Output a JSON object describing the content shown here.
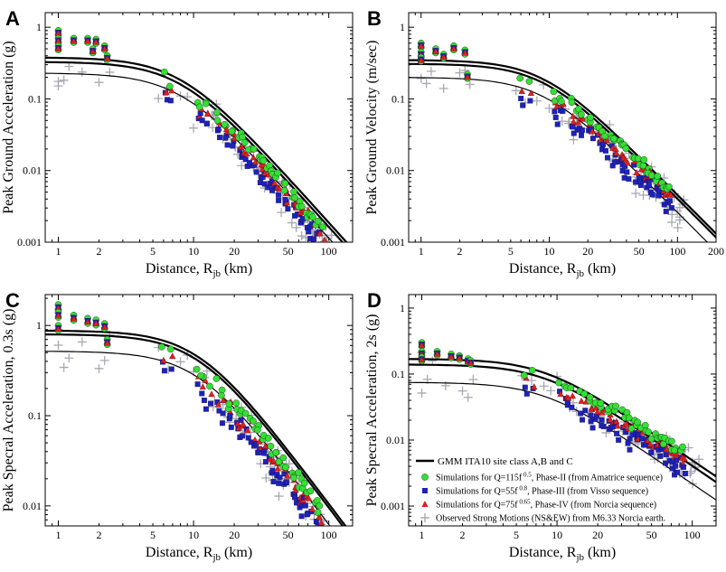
{
  "chart_data": [
    {
      "type": "scatter",
      "panel": "A",
      "xlabel": "Distance, R",
      "xlabel_sub": "jb",
      "xlabel_unit": "(km)",
      "ylabel": "Peak Ground Acceleration (g)",
      "xlim": [
        0.8,
        150
      ],
      "ylim": [
        0.001,
        1.6
      ],
      "xticks": [
        1,
        2,
        5,
        10,
        20,
        50,
        100
      ],
      "yticks": [
        0.001,
        0.01,
        0.1,
        1
      ],
      "ytick_labels": [
        "0.001",
        "0.01",
        "0.1",
        "1"
      ],
      "gmm": [
        {
          "name": "upper",
          "width": 2.2,
          "m0": 0.38,
          "m1": 2.1
        },
        {
          "name": "middle",
          "width": 2.2,
          "m0": 0.33,
          "m1": 2.1
        },
        {
          "name": "lower",
          "width": 1.2,
          "m0": 0.23,
          "m1": 2.1
        }
      ],
      "gmm_rc": 8,
      "sim_ref": 0.3,
      "sim_m": 2.1,
      "near_values": [
        [
          1,
          0.9
        ],
        [
          1,
          0.7
        ],
        [
          1,
          0.55
        ],
        [
          1.3,
          0.7
        ],
        [
          1.65,
          0.7
        ],
        [
          1.9,
          0.68
        ],
        [
          2.2,
          0.55
        ],
        [
          1.8,
          0.5
        ],
        [
          2.3,
          0.4
        ]
      ]
    },
    {
      "type": "scatter",
      "panel": "B",
      "xlabel": "Distance, R",
      "xlabel_sub": "jb",
      "xlabel_unit": "(km)",
      "ylabel": "Peak Ground Velocity (m/sec)",
      "xlim": [
        0.8,
        200
      ],
      "ylim": [
        0.001,
        1.6
      ],
      "xticks": [
        1,
        2,
        5,
        10,
        20,
        50,
        100,
        200
      ],
      "yticks": [
        0.001,
        0.01,
        0.1,
        1
      ],
      "ytick_labels": [
        "0.001",
        "0.01",
        "0.1",
        "1"
      ],
      "gmm": [
        {
          "name": "upper",
          "width": 2.2,
          "m0": 0.35,
          "m1": 1.8
        },
        {
          "name": "middle",
          "width": 2.2,
          "m0": 0.31,
          "m1": 1.8
        },
        {
          "name": "lower",
          "width": 1.2,
          "m0": 0.2,
          "m1": 1.8
        }
      ],
      "gmm_rc": 9,
      "sim_ref": 0.25,
      "sim_m": 1.6,
      "near_values": [
        [
          1,
          0.6
        ],
        [
          1,
          0.45
        ],
        [
          1,
          0.38
        ],
        [
          1.3,
          0.5
        ],
        [
          1.5,
          0.42
        ],
        [
          1.8,
          0.55
        ],
        [
          2.2,
          0.48
        ],
        [
          2.3,
          0.22
        ]
      ]
    },
    {
      "type": "scatter",
      "panel": "C",
      "xlabel": "Distance, R",
      "xlabel_sub": "jb",
      "xlabel_unit": "(km)",
      "ylabel": "Peak Specral Acceleration, 0.3s (g)",
      "xlim": [
        0.8,
        150
      ],
      "ylim": [
        0.006,
        2.2
      ],
      "xticks": [
        1,
        2,
        5,
        10,
        20,
        50,
        100
      ],
      "yticks": [
        0.01,
        0.1,
        1
      ],
      "ytick_labels": [
        "0.01",
        "0.1",
        "1"
      ],
      "gmm": [
        {
          "name": "upper",
          "width": 2.2,
          "m0": 0.88,
          "m1": 2.0
        },
        {
          "name": "middle",
          "width": 2.2,
          "m0": 0.8,
          "m1": 2.0
        },
        {
          "name": "lower",
          "width": 1.2,
          "m0": 0.52,
          "m1": 2.0
        }
      ],
      "gmm_rc": 11,
      "sim_ref": 0.7,
      "sim_m": 2.0,
      "near_values": [
        [
          1,
          1.7
        ],
        [
          1,
          1.4
        ],
        [
          1,
          1.0
        ],
        [
          1.3,
          1.3
        ],
        [
          1.65,
          1.2
        ],
        [
          1.9,
          1.15
        ],
        [
          2.2,
          1.05
        ],
        [
          2.3,
          0.7
        ]
      ]
    },
    {
      "type": "scatter",
      "panel": "D",
      "xlabel": "Distance, R",
      "xlabel_sub": "jb",
      "xlabel_unit": "(km)",
      "ylabel": "Peak Specral Acceleration, 2s (g)",
      "xlim": [
        0.8,
        150
      ],
      "ylim": [
        0.0005,
        1.6
      ],
      "xticks": [
        1,
        2,
        5,
        10,
        20,
        50,
        100
      ],
      "yticks": [
        0.001,
        0.01,
        0.1,
        1
      ],
      "ytick_labels": [
        "0.001",
        "0.01",
        "0.1",
        "1"
      ],
      "gmm": [
        {
          "name": "upper",
          "width": 2.2,
          "m0": 0.17,
          "m1": 1.4
        },
        {
          "name": "middle",
          "width": 2.2,
          "m0": 0.14,
          "m1": 1.4
        },
        {
          "name": "lower",
          "width": 1.2,
          "m0": 0.075,
          "m1": 1.4
        }
      ],
      "gmm_rc": 8,
      "sim_ref": 0.13,
      "sim_m": 1.2,
      "near_values": [
        [
          1,
          0.3
        ],
        [
          1,
          0.22
        ],
        [
          1,
          0.18
        ],
        [
          1.3,
          0.22
        ],
        [
          1.65,
          0.2
        ],
        [
          1.9,
          0.19
        ],
        [
          2.2,
          0.17
        ],
        [
          2.3,
          0.16
        ]
      ],
      "legend": {
        "title": "GMM  ITA10 site class A,B and C",
        "items": [
          {
            "marker": "circle",
            "color": "#33e033",
            "text_pre": "Simulations for Q=115f",
            "sup": "0.5",
            "text_post": ", Phase-II (from Amatrice sequence)"
          },
          {
            "marker": "square",
            "color": "#1f22b8",
            "text_pre": "Simulations for Q=55f",
            "sup": "0.8",
            "text_post": ", Phase-III (from Visso sequence)"
          },
          {
            "marker": "triangle",
            "color": "#e02020",
            "text_pre": "Simulations for Q=75f",
            "sup": "0.65",
            "text_post": ", Phase-IV (from Norcia sequence)"
          },
          {
            "marker": "plus",
            "color": "#a8a8b4",
            "text_pre": "Observed Strong Motions (NS&EW) from M6.33 Norcia earth.",
            "sup": "",
            "text_post": ""
          }
        ]
      }
    }
  ],
  "colors": {
    "sim_green": "#33e033",
    "sim_blue": "#1f22b8",
    "sim_red": "#e02020",
    "obs_gray": "#a8a8b4"
  }
}
